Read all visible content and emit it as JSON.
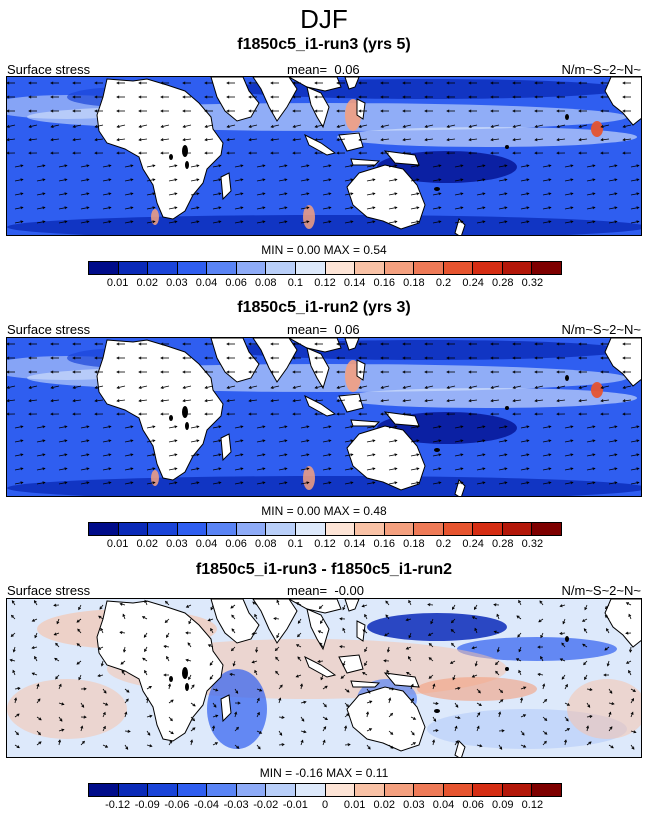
{
  "title": "DJF",
  "colors": {
    "stress_scale": [
      "#000c8a",
      "#0a2ab8",
      "#1a44d8",
      "#2f5ef0",
      "#5a84f5",
      "#8eabf7",
      "#b9cff9",
      "#dde9fb",
      "#fde4d6",
      "#f9c2a6",
      "#f4a07f",
      "#ee7a57",
      "#e6542f",
      "#d52d13",
      "#b31709",
      "#7e0000"
    ],
    "diff_scale": [
      "#000c8a",
      "#0a2ab8",
      "#1a44d8",
      "#2f5ef0",
      "#5a84f5",
      "#8eabf7",
      "#b9cff9",
      "#dde9fb",
      "#fde4d6",
      "#f9c2a6",
      "#f4a07f",
      "#ee7a57",
      "#e6542f",
      "#d52d13",
      "#b31709",
      "#7e0000"
    ],
    "land": "#ffffff",
    "arrows": "#000000"
  },
  "panels": [
    {
      "title": "f1850c5_i1-run3 (yrs 5)",
      "left_label": "Surface stress",
      "mean_label": "mean=",
      "mean_value": "0.06",
      "units": "N/m~S~2~N~",
      "minmax": "MIN =   0.00 MAX =   0.54",
      "scale": "stress",
      "base_color": "#2f5ef0",
      "ticks": [
        "0.01",
        "0.02",
        "0.03",
        "0.04",
        "0.06",
        "0.08",
        "0.1",
        "0.12",
        "0.14",
        "0.16",
        "0.18",
        "0.2",
        "0.24",
        "0.28",
        "0.32"
      ]
    },
    {
      "title": "f1850c5_i1-run2 (yrs 3)",
      "left_label": "Surface stress",
      "mean_label": "mean=",
      "mean_value": "0.06",
      "units": "N/m~S~2~N~",
      "minmax": "MIN =   0.00 MAX =   0.48",
      "scale": "stress",
      "base_color": "#2f5ef0",
      "ticks": [
        "0.01",
        "0.02",
        "0.03",
        "0.04",
        "0.06",
        "0.08",
        "0.1",
        "0.12",
        "0.14",
        "0.16",
        "0.18",
        "0.2",
        "0.24",
        "0.28",
        "0.32"
      ]
    },
    {
      "title": "f1850c5_i1-run3 - f1850c5_i1-run2",
      "left_label": "Surface stress",
      "mean_label": "mean=",
      "mean_value": "-0.00",
      "units": "N/m~S~2~N~",
      "minmax": "MIN =  -0.16 MAX =   0.11",
      "scale": "diff",
      "base_color": "#dde9fb",
      "ticks": [
        "-0.12",
        "-0.09",
        "-0.06",
        "-0.04",
        "-0.03",
        "-0.02",
        "-0.01",
        "0",
        "0.01",
        "0.02",
        "0.03",
        "0.04",
        "0.06",
        "0.09",
        "0.12"
      ]
    }
  ]
}
